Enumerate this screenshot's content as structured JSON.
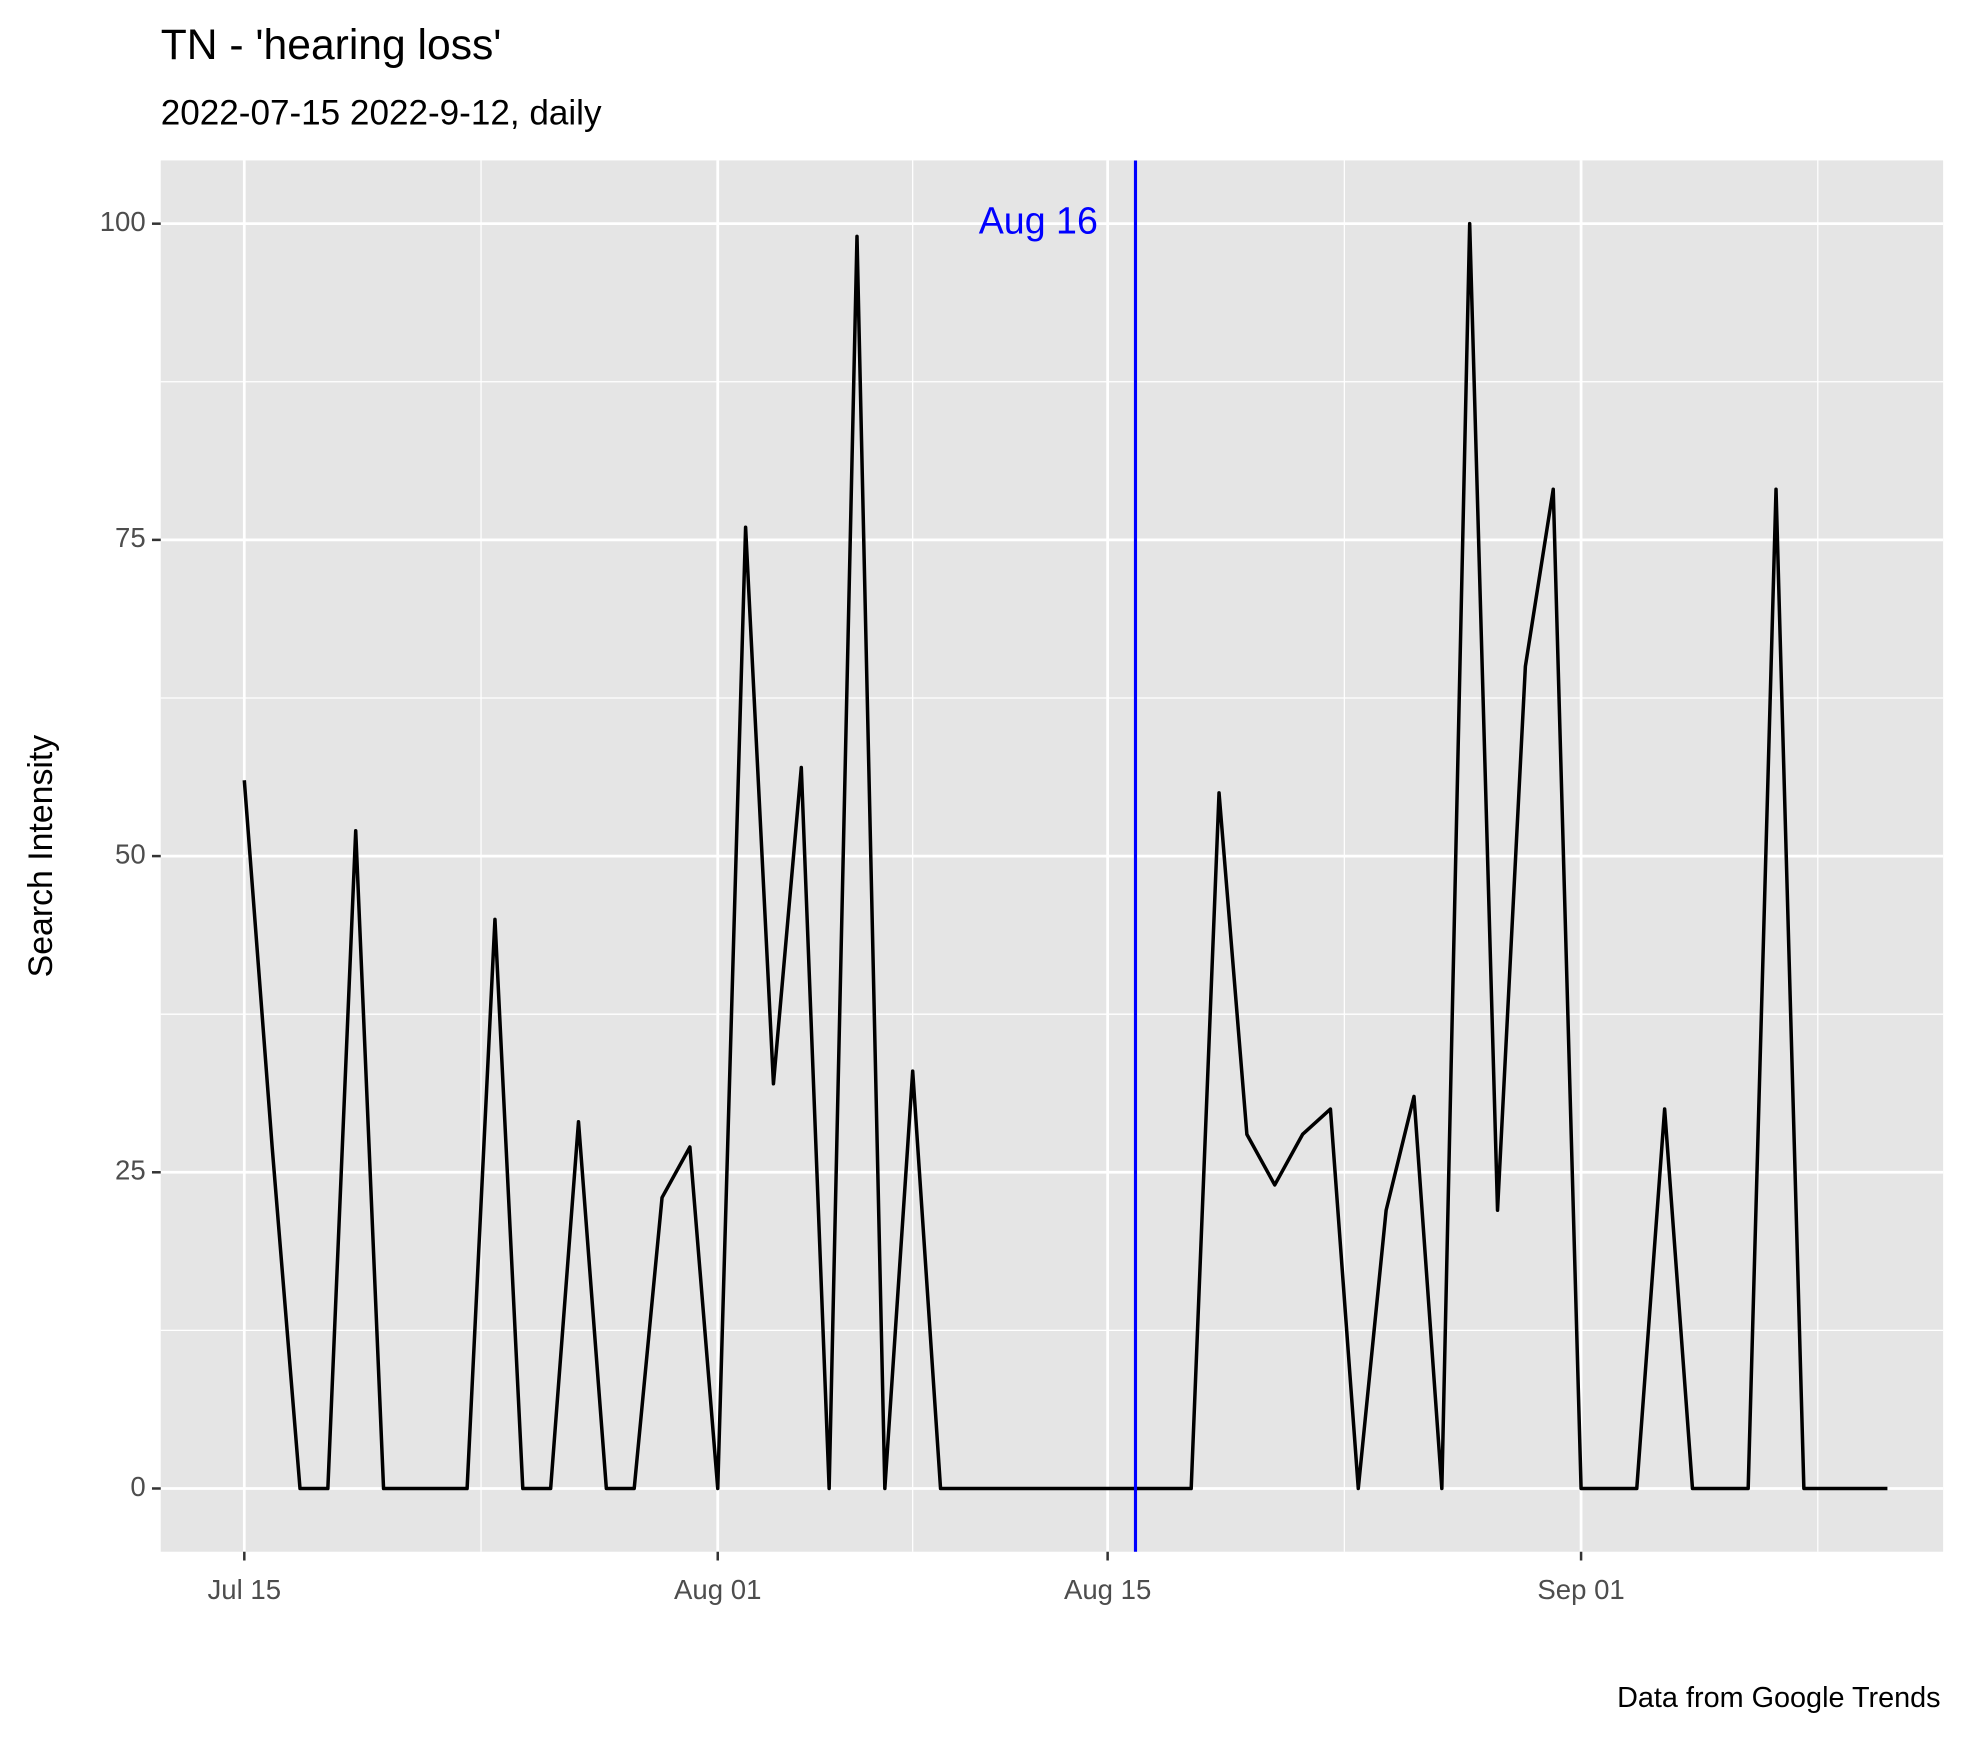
{
  "chart_data": {
    "type": "line",
    "title": "TN  - 'hearing loss'",
    "subtitle": "2022-07-15 2022-9-12, daily",
    "y_label": "Search Intensity",
    "caption": "Data from Google Trends",
    "color": "#000000",
    "x": [
      "2022-07-15",
      "2022-07-16",
      "2022-07-17",
      "2022-07-18",
      "2022-07-19",
      "2022-07-20",
      "2022-07-21",
      "2022-07-22",
      "2022-07-23",
      "2022-07-24",
      "2022-07-25",
      "2022-07-26",
      "2022-07-27",
      "2022-07-28",
      "2022-07-29",
      "2022-07-30",
      "2022-07-31",
      "2022-08-01",
      "2022-08-02",
      "2022-08-03",
      "2022-08-04",
      "2022-08-05",
      "2022-08-06",
      "2022-08-07",
      "2022-08-08",
      "2022-08-09",
      "2022-08-10",
      "2022-08-11",
      "2022-08-12",
      "2022-08-13",
      "2022-08-14",
      "2022-08-15",
      "2022-08-16",
      "2022-08-17",
      "2022-08-18",
      "2022-08-19",
      "2022-08-20",
      "2022-08-21",
      "2022-08-22",
      "2022-08-23",
      "2022-08-24",
      "2022-08-25",
      "2022-08-26",
      "2022-08-27",
      "2022-08-28",
      "2022-08-29",
      "2022-08-30",
      "2022-08-31",
      "2022-09-01",
      "2022-09-02",
      "2022-09-03",
      "2022-09-04",
      "2022-09-05",
      "2022-09-06",
      "2022-09-07",
      "2022-09-08",
      "2022-09-09",
      "2022-09-10",
      "2022-09-11",
      "2022-09-12"
    ],
    "values": [
      56,
      27,
      0,
      0,
      52,
      0,
      0,
      0,
      0,
      45,
      0,
      0,
      29,
      0,
      0,
      23,
      27,
      0,
      76,
      32,
      57,
      0,
      99,
      0,
      33,
      0,
      0,
      0,
      0,
      0,
      0,
      0,
      0,
      0,
      0,
      55,
      28,
      24,
      28,
      30,
      0,
      22,
      31,
      0,
      100,
      22,
      65,
      79,
      0,
      0,
      0,
      30,
      0,
      0,
      0,
      79,
      0,
      0,
      0,
      0
    ],
    "xlim": [
      "2022-07-12",
      "2022-09-14"
    ],
    "xticks": [
      {
        "value": "2022-07-15",
        "label": "Jul 15"
      },
      {
        "value": "2022-08-01",
        "label": "Aug 01"
      },
      {
        "value": "2022-08-15",
        "label": "Aug 15"
      },
      {
        "value": "2022-09-01",
        "label": "Sep 01"
      }
    ],
    "ylim": [
      -5,
      105
    ],
    "yticks": [
      0,
      25,
      50,
      75,
      100
    ],
    "grid": true,
    "vline": {
      "x": "2022-08-16",
      "color": "#0000ff",
      "label": "Aug 16"
    }
  }
}
